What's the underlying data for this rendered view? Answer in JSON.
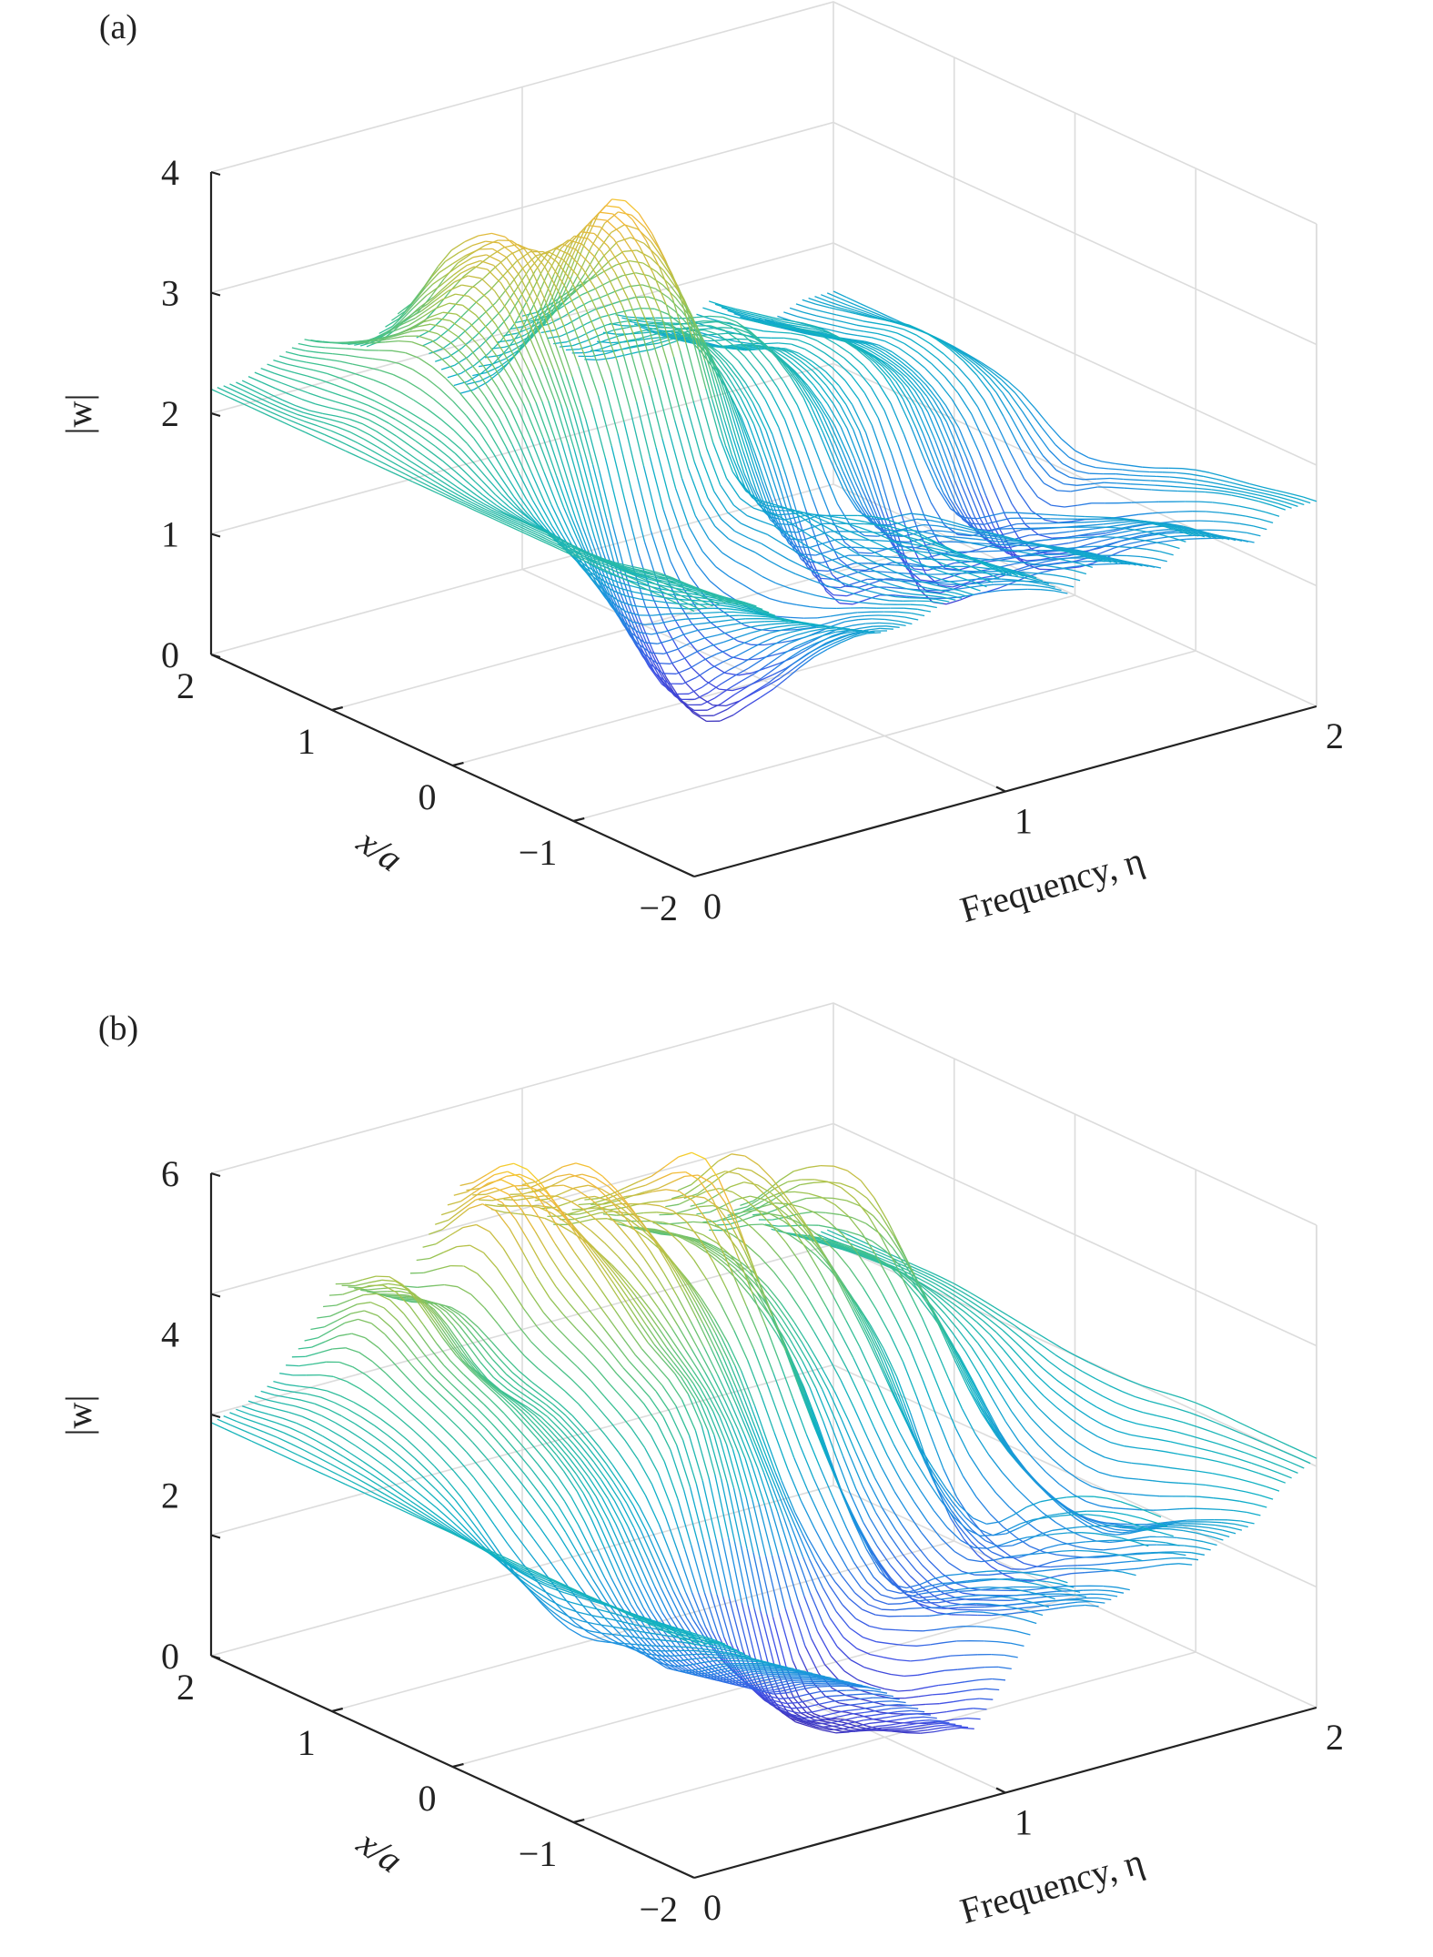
{
  "chart_data": [
    {
      "panel_label": "(a)",
      "type": "surface-mesh",
      "xlabel": "Frequency, η",
      "ylabel": "x/a",
      "zlabel": "|w|",
      "xlim": [
        0,
        2
      ],
      "ylim": [
        -2,
        2
      ],
      "zlim": [
        0,
        4
      ],
      "xticks": [
        "0",
        "1",
        "2"
      ],
      "yticks": [
        "2",
        "1",
        "0",
        "−1",
        "−2"
      ],
      "zticks": [
        "0",
        "1",
        "2",
        "3",
        "4"
      ],
      "zgrid": [
        0,
        1,
        2,
        3,
        4
      ],
      "grid": true,
      "colormap": "parula",
      "eta": [
        0,
        0.1,
        0.2,
        0.3,
        0.4,
        0.5,
        0.6,
        0.7,
        0.8,
        0.9,
        1.0,
        1.1,
        1.2,
        1.3,
        1.4,
        1.5,
        1.6,
        1.7,
        1.8,
        1.9,
        2.0
      ],
      "x_over_a": [
        -2,
        -1.5,
        -1,
        -0.5,
        0,
        0.5,
        1,
        1.5,
        2
      ],
      "w_abs": [
        [
          2.2,
          2.2,
          2.1,
          1.9,
          1.8,
          1.7,
          1.6,
          1.6,
          1.7,
          1.7,
          1.8,
          1.7,
          1.5,
          1.7,
          1.6,
          1.5,
          1.7,
          1.6,
          1.5,
          1.7,
          1.7
        ],
        [
          2.2,
          2.2,
          2.0,
          1.8,
          1.6,
          1.4,
          1.2,
          1.4,
          1.5,
          1.6,
          1.8,
          1.6,
          1.3,
          1.6,
          1.5,
          1.3,
          1.6,
          1.5,
          1.3,
          1.6,
          1.6
        ],
        [
          2.2,
          2.1,
          1.9,
          1.6,
          1.3,
          0.9,
          0.6,
          1.0,
          1.4,
          1.6,
          1.8,
          1.4,
          1.0,
          1.5,
          1.3,
          1.0,
          1.4,
          1.2,
          1.0,
          1.4,
          1.5
        ],
        [
          2.2,
          2.1,
          1.9,
          1.5,
          1.0,
          0.5,
          0.2,
          0.8,
          1.4,
          1.7,
          1.6,
          1.2,
          0.8,
          1.4,
          1.1,
          0.6,
          1.2,
          0.9,
          0.6,
          1.2,
          1.3
        ],
        [
          2.2,
          2.1,
          2.0,
          1.8,
          1.6,
          1.2,
          0.8,
          1.2,
          1.6,
          1.8,
          1.4,
          1.0,
          0.6,
          1.2,
          0.9,
          0.4,
          1.0,
          0.7,
          0.5,
          1.0,
          1.2
        ],
        [
          2.2,
          2.2,
          2.3,
          2.5,
          2.6,
          2.6,
          2.4,
          2.8,
          3.0,
          3.2,
          2.6,
          2.0,
          1.8,
          2.0,
          1.7,
          1.6,
          1.8,
          1.6,
          1.4,
          1.6,
          1.5
        ],
        [
          2.2,
          2.3,
          2.4,
          2.8,
          3.0,
          3.3,
          3.4,
          3.3,
          3.4,
          3.6,
          3.0,
          2.4,
          2.2,
          2.3,
          2.0,
          1.9,
          2.0,
          1.8,
          1.7,
          1.8,
          1.6
        ],
        [
          2.2,
          2.2,
          2.4,
          2.6,
          2.6,
          2.8,
          3.2,
          2.6,
          2.2,
          2.4,
          2.6,
          2.2,
          1.9,
          2.1,
          1.8,
          1.7,
          1.9,
          1.7,
          1.6,
          1.7,
          1.6
        ],
        [
          2.2,
          2.2,
          2.3,
          2.4,
          2.3,
          2.2,
          2.4,
          2.0,
          1.6,
          1.9,
          2.1,
          1.8,
          1.6,
          1.9,
          1.7,
          1.6,
          1.8,
          1.6,
          1.5,
          1.6,
          1.6
        ]
      ]
    },
    {
      "panel_label": "(b)",
      "type": "surface-mesh",
      "xlabel": "Frequency, η",
      "ylabel": "x/a",
      "zlabel": "|w|",
      "xlim": [
        0,
        2
      ],
      "ylim": [
        -2,
        2
      ],
      "zlim": [
        0,
        6
      ],
      "xticks": [
        "0",
        "1",
        "2"
      ],
      "yticks": [
        "2",
        "1",
        "0",
        "−1",
        "−2"
      ],
      "zticks": [
        "0",
        "2",
        "4",
        "6"
      ],
      "zgrid": [
        0,
        1.5,
        3,
        4.5,
        6
      ],
      "grid": true,
      "colormap": "parula",
      "eta": [
        0,
        0.1,
        0.2,
        0.3,
        0.4,
        0.5,
        0.6,
        0.7,
        0.8,
        0.9,
        1.0,
        1.1,
        1.2,
        1.3,
        1.4,
        1.5,
        1.6,
        1.7,
        1.8,
        1.9,
        2.0
      ],
      "x_over_a": [
        -2,
        -1.5,
        -1,
        -0.5,
        0,
        0.5,
        1,
        1.5,
        2
      ],
      "w_abs": [
        [
          2.9,
          2.8,
          2.5,
          2.3,
          2.1,
          1.9,
          1.7,
          1.4,
          1.1,
          0.9,
          1.4,
          2.0,
          2.4,
          2.0,
          2.1,
          2.9,
          2.2,
          2.4,
          2.5,
          2.9,
          3.1
        ],
        [
          2.9,
          2.7,
          2.3,
          2.0,
          1.8,
          1.6,
          1.4,
          1.0,
          0.7,
          0.5,
          1.0,
          1.8,
          2.2,
          1.6,
          1.8,
          2.8,
          1.8,
          2.2,
          2.2,
          2.8,
          3.1
        ],
        [
          2.9,
          2.6,
          2.0,
          1.6,
          1.4,
          1.2,
          1.0,
          0.6,
          0.3,
          0.3,
          0.6,
          1.4,
          1.8,
          1.2,
          1.4,
          2.4,
          1.4,
          1.8,
          1.8,
          2.6,
          3.1
        ],
        [
          2.9,
          2.5,
          1.8,
          2.0,
          1.8,
          1.6,
          1.4,
          1.0,
          0.6,
          0.4,
          0.8,
          1.2,
          1.4,
          1.0,
          1.2,
          1.8,
          1.0,
          2.0,
          1.6,
          2.4,
          3.0
        ],
        [
          2.9,
          2.6,
          2.2,
          2.8,
          3.0,
          2.8,
          2.6,
          3.2,
          3.4,
          3.0,
          2.6,
          2.0,
          2.6,
          1.6,
          1.8,
          2.4,
          1.4,
          2.6,
          2.0,
          2.6,
          3.0
        ],
        [
          2.9,
          2.8,
          2.9,
          3.4,
          3.6,
          3.4,
          3.3,
          3.9,
          4.2,
          4.0,
          4.0,
          3.6,
          4.2,
          3.2,
          3.0,
          3.6,
          3.0,
          3.8,
          3.0,
          3.1,
          3.1
        ],
        [
          2.9,
          3.0,
          3.3,
          3.8,
          4.0,
          3.6,
          3.6,
          4.4,
          5.0,
          4.6,
          5.0,
          4.4,
          5.6,
          4.0,
          3.8,
          4.6,
          3.8,
          4.8,
          3.6,
          3.3,
          3.2
        ],
        [
          2.9,
          3.1,
          3.4,
          4.2,
          4.6,
          4.2,
          4.0,
          5.2,
          5.6,
          4.8,
          5.4,
          4.6,
          5.0,
          4.2,
          4.0,
          5.0,
          4.0,
          4.6,
          3.6,
          3.3,
          3.2
        ],
        [
          2.9,
          3.0,
          3.2,
          3.6,
          4.2,
          4.0,
          3.8,
          4.5,
          5.0,
          4.6,
          4.8,
          4.2,
          4.4,
          4.0,
          3.8,
          4.2,
          3.6,
          3.8,
          3.4,
          3.2,
          3.2
        ]
      ]
    }
  ]
}
